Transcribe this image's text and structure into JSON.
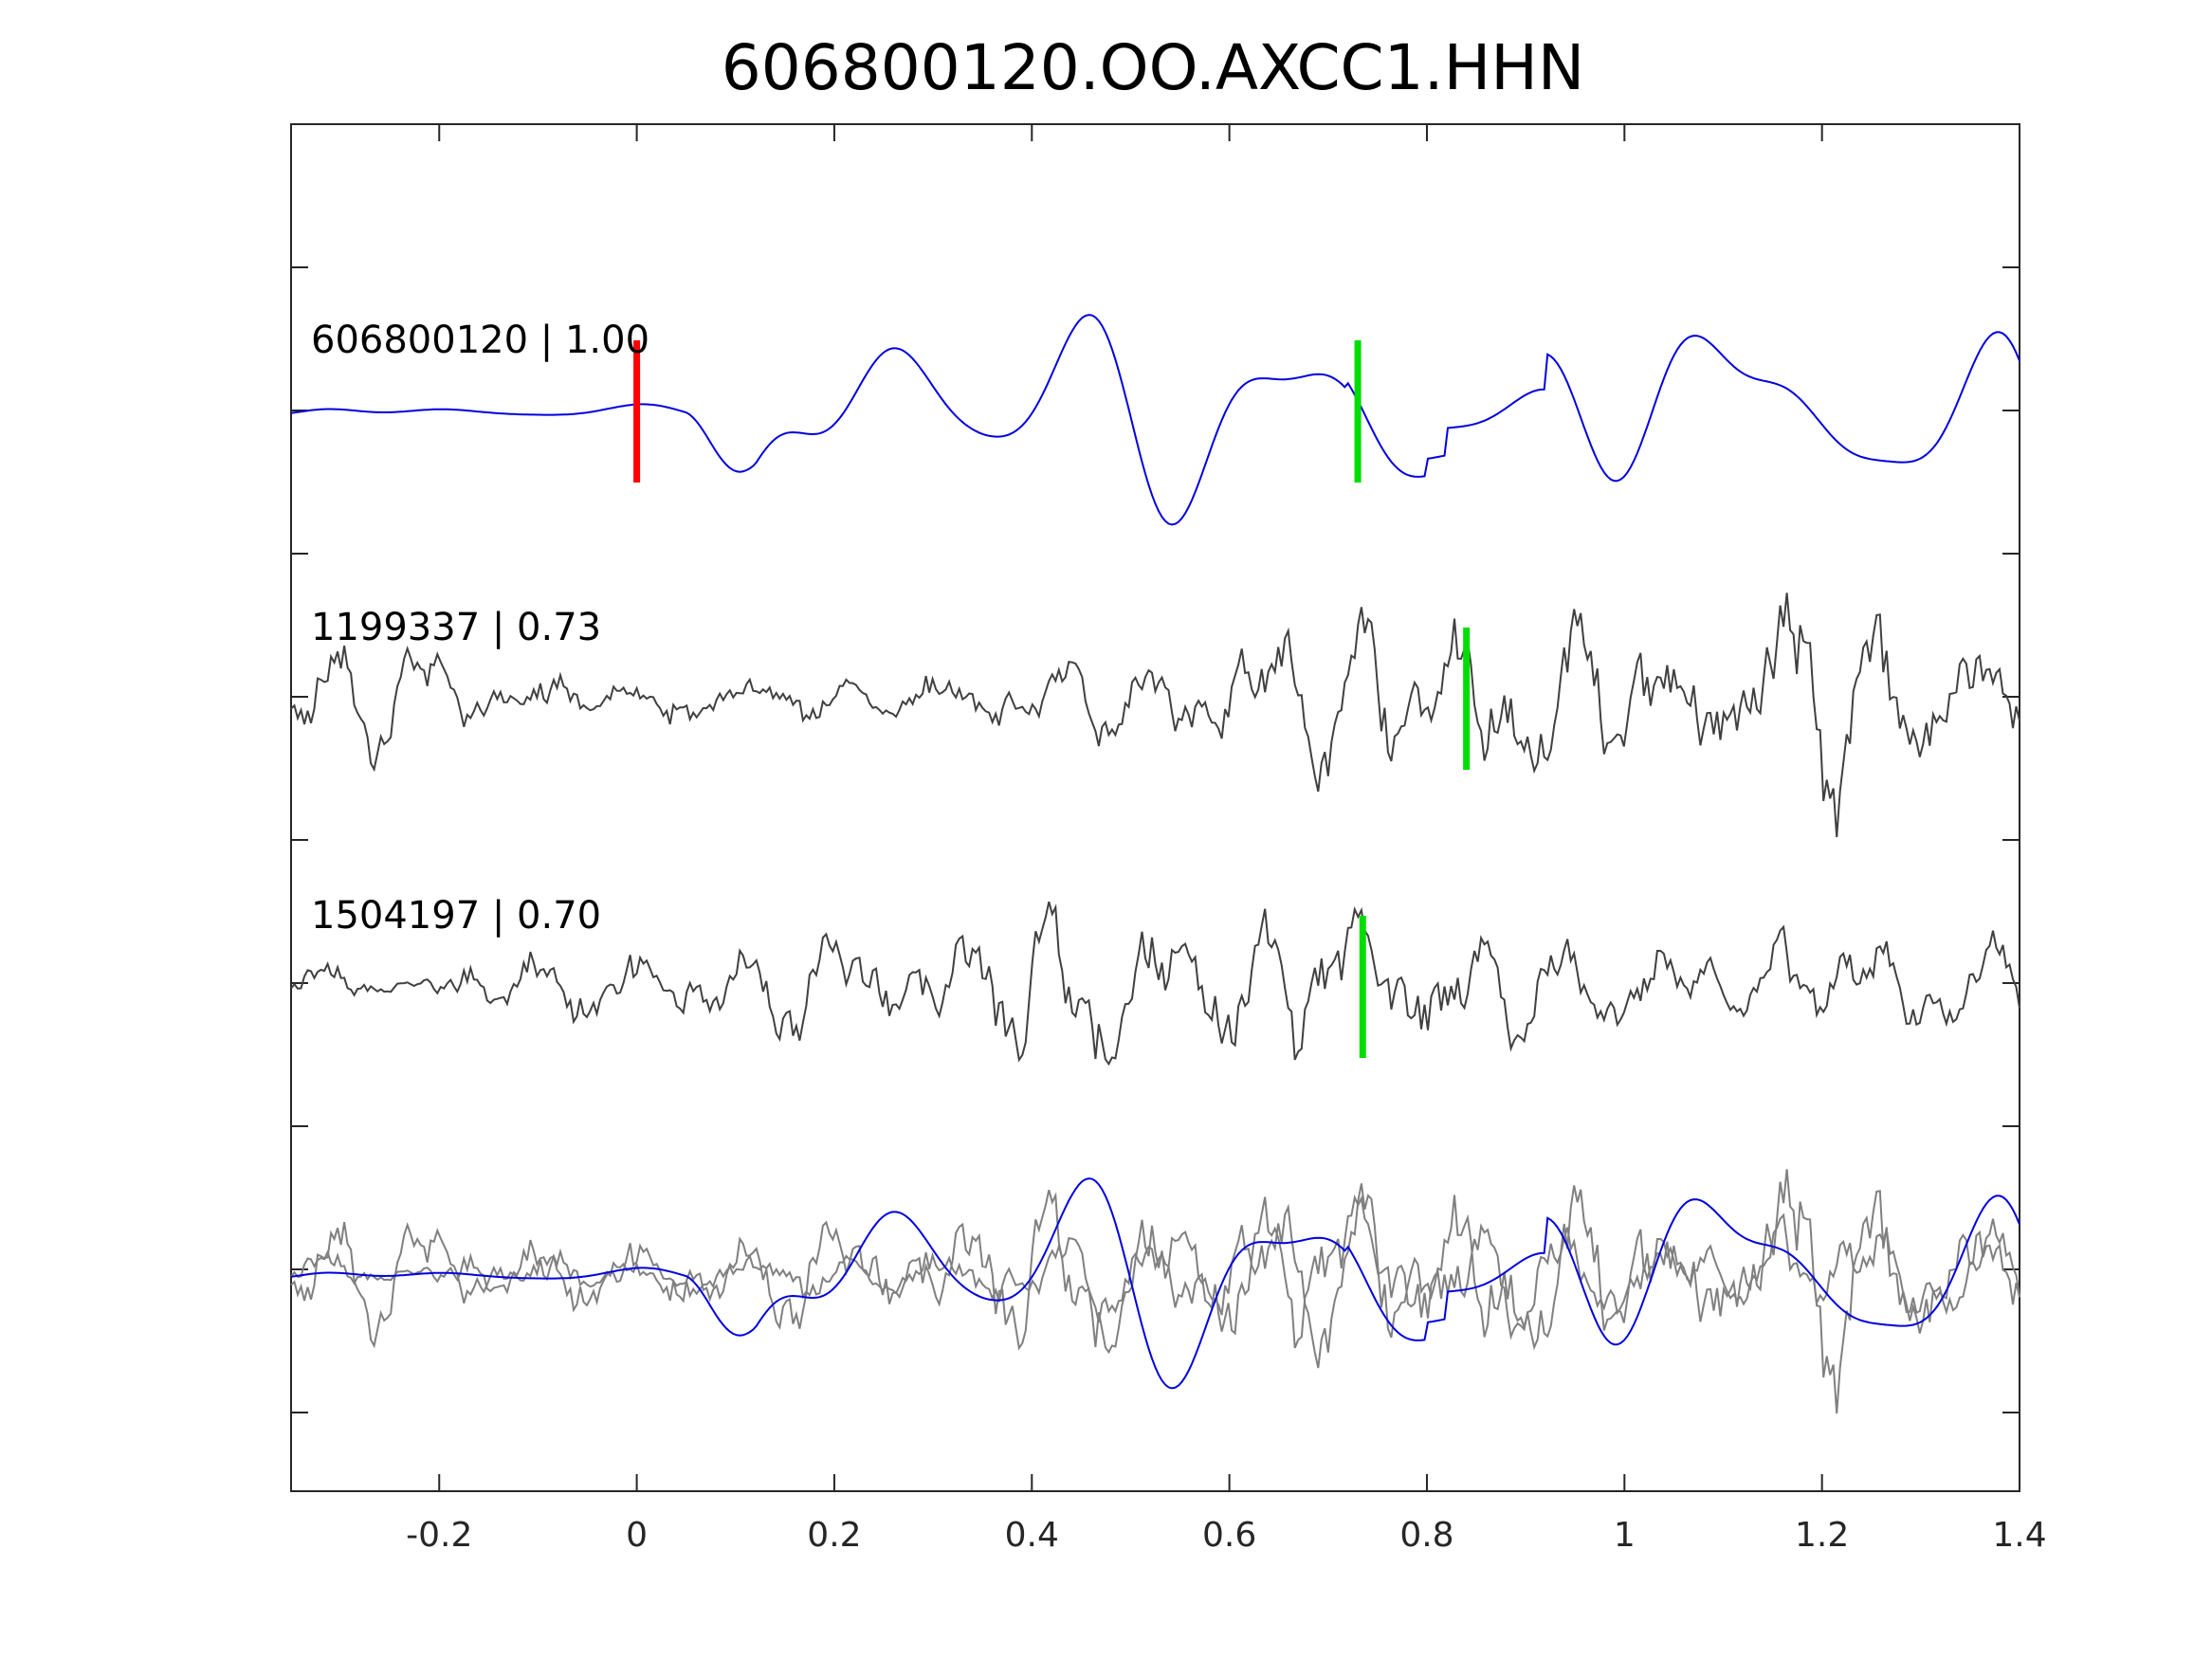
{
  "chart_data": {
    "type": "line",
    "title": "606800120.OO.AXCC1.HHN",
    "xlabel": "",
    "ylabel": "",
    "xlim": [
      -0.35,
      1.4
    ],
    "x_ticks": [
      {
        "value": -0.2,
        "label": "-0.2"
      },
      {
        "value": 0,
        "label": "0"
      },
      {
        "value": 0.2,
        "label": "0.2"
      },
      {
        "value": 0.4,
        "label": "0.4"
      },
      {
        "value": 0.6,
        "label": "0.6"
      },
      {
        "value": 0.8,
        "label": "0.8"
      },
      {
        "value": 1,
        "label": "1"
      },
      {
        "value": 1.2,
        "label": "1.2"
      },
      {
        "value": 1.4,
        "label": "1.4"
      }
    ],
    "y_ticks_labeled": false,
    "grid": false,
    "colors": {
      "primary_trace": "#0000e0",
      "reference_trace": "#404040",
      "overlay_reference": "#808080",
      "pick_marker_red": "#ff0000",
      "pick_marker_green": "#00dd00"
    },
    "traces": [
      {
        "label": "606800120 | 1.00",
        "color": "#0000e0",
        "role": "primary",
        "pick_red": 0.0,
        "pick_green": 0.73,
        "seed": 11,
        "style": "smooth"
      },
      {
        "label": "1199337 | 0.73",
        "color": "#404040",
        "role": "reference",
        "pick_green": 0.84,
        "seed": 23,
        "style": "rough"
      },
      {
        "label": "1504197 | 0.70",
        "color": "#404040",
        "role": "reference",
        "pick_green": 0.735,
        "seed": 37,
        "style": "rough"
      }
    ],
    "overlay": {
      "includes": [
        "606800120 | 1.00",
        "1199337 | 0.73",
        "1504197 | 0.70"
      ],
      "reference_color": "#808080"
    }
  }
}
